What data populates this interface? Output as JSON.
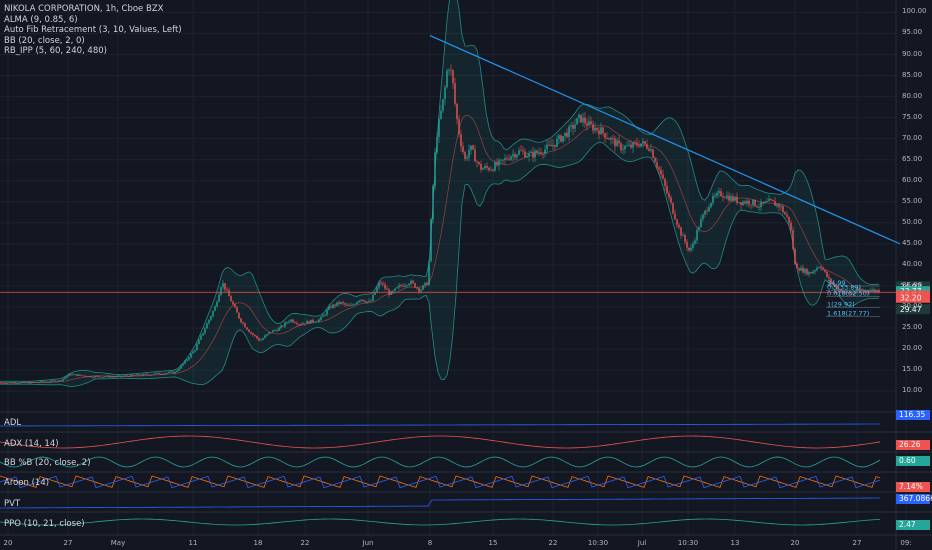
{
  "chart_data": {
    "type": "candlestick",
    "title": "NIKOLA CORPORATION, 1h, Cboe BZX",
    "indicators_overlay": [
      "ALMA (9, 0.85, 6)",
      "Auto Fib Retracement (3, 10, Values, Left)",
      "BB (20, close, 2, 0)",
      "RB_IPP (5, 60, 240, 480)"
    ],
    "price_axis": {
      "ticks": [
        "100.00",
        "95.00",
        "90.00",
        "85.00",
        "80.00",
        "75.00",
        "70.00",
        "65.00",
        "60.00",
        "55.00",
        "50.00",
        "45.00",
        "40.00",
        "35.00",
        "30.00",
        "25.00",
        "20.00",
        "15.00",
        "10.00"
      ],
      "ylim": [
        6,
        102
      ]
    },
    "x_ticks": [
      "20",
      "27",
      "May",
      "11",
      "18",
      "22",
      "Jun",
      "8",
      "15",
      "22",
      "10:30",
      "Jul",
      "10:30",
      "13",
      "20",
      "27",
      "09:"
    ],
    "price_path": [
      [
        0,
        12
      ],
      [
        30,
        12
      ],
      [
        60,
        12.5
      ],
      [
        70,
        14
      ],
      [
        90,
        13.5
      ],
      [
        120,
        13.5
      ],
      [
        150,
        14
      ],
      [
        175,
        14.5
      ],
      [
        185,
        17
      ],
      [
        195,
        20
      ],
      [
        205,
        25
      ],
      [
        215,
        30
      ],
      [
        222,
        36
      ],
      [
        230,
        32
      ],
      [
        240,
        27
      ],
      [
        250,
        24
      ],
      [
        260,
        22
      ],
      [
        270,
        24
      ],
      [
        280,
        25
      ],
      [
        290,
        27
      ],
      [
        300,
        26
      ],
      [
        310,
        26.5
      ],
      [
        320,
        27
      ],
      [
        330,
        30
      ],
      [
        340,
        31
      ],
      [
        350,
        30
      ],
      [
        360,
        32
      ],
      [
        370,
        31
      ],
      [
        380,
        36
      ],
      [
        390,
        33
      ],
      [
        400,
        35
      ],
      [
        410,
        36
      ],
      [
        420,
        34
      ],
      [
        428,
        36
      ],
      [
        432,
        55
      ],
      [
        436,
        70
      ],
      [
        440,
        75
      ],
      [
        444,
        80
      ],
      [
        448,
        88
      ],
      [
        452,
        85
      ],
      [
        456,
        76
      ],
      [
        460,
        70
      ],
      [
        465,
        65
      ],
      [
        470,
        68
      ],
      [
        480,
        63
      ],
      [
        490,
        63
      ],
      [
        500,
        64
      ],
      [
        510,
        66
      ],
      [
        520,
        67
      ],
      [
        530,
        66
      ],
      [
        540,
        67
      ],
      [
        550,
        68
      ],
      [
        560,
        70
      ],
      [
        570,
        72
      ],
      [
        580,
        75
      ],
      [
        590,
        73
      ],
      [
        600,
        72
      ],
      [
        610,
        70
      ],
      [
        620,
        68
      ],
      [
        630,
        68
      ],
      [
        640,
        69
      ],
      [
        650,
        68
      ],
      [
        660,
        62
      ],
      [
        670,
        55
      ],
      [
        680,
        48
      ],
      [
        690,
        43
      ],
      [
        700,
        50
      ],
      [
        710,
        55
      ],
      [
        720,
        57
      ],
      [
        730,
        56
      ],
      [
        740,
        55
      ],
      [
        750,
        55
      ],
      [
        760,
        54
      ],
      [
        770,
        55
      ],
      [
        780,
        54
      ],
      [
        790,
        50
      ],
      [
        795,
        40
      ],
      [
        800,
        39
      ],
      [
        810,
        38
      ],
      [
        820,
        40
      ],
      [
        830,
        36
      ],
      [
        840,
        34
      ],
      [
        850,
        33
      ],
      [
        860,
        34
      ],
      [
        870,
        34
      ],
      [
        880,
        33.8
      ]
    ],
    "trendline": [
      [
        430,
        94.5
      ],
      [
        900,
        45
      ]
    ],
    "horizontal_level": 33.5,
    "fib_labels": [
      "34.99",
      "0.5(33.89)",
      "0.618(32.50)",
      "1(29.92)",
      "1.618(27.77)"
    ],
    "price_tags": [
      {
        "label": "34.93",
        "value": 34.93,
        "color": "#1e3a3a"
      },
      {
        "label": "33.77",
        "value": 33.77,
        "color": "#26a69a"
      },
      {
        "label": "32.74",
        "value": 32.74,
        "color": "#ef5350"
      },
      {
        "label": "32.20",
        "value": 32.2,
        "color": "#ef5350"
      },
      {
        "label": "29.47",
        "value": 29.47,
        "color": "#1e3a3a"
      }
    ]
  },
  "panes": [
    {
      "name": "ADL",
      "value": "116.35"
    },
    {
      "name": "ADX (14, 14)",
      "value": "26.26"
    },
    {
      "name": "BB %B (20, close, 2)",
      "value": "0.60"
    },
    {
      "name": "Aroon (14)",
      "value": "7.14%"
    },
    {
      "name": "PVT",
      "value": "367.086K"
    },
    {
      "name": "PPO (10, 21, close)",
      "value": "2.47"
    }
  ],
  "colors": {
    "background": "#131722",
    "bull": "#26a69a",
    "bear": "#ef5350",
    "trend": "#2196f3",
    "bb": "#26a69a",
    "level": "#ef5350"
  }
}
